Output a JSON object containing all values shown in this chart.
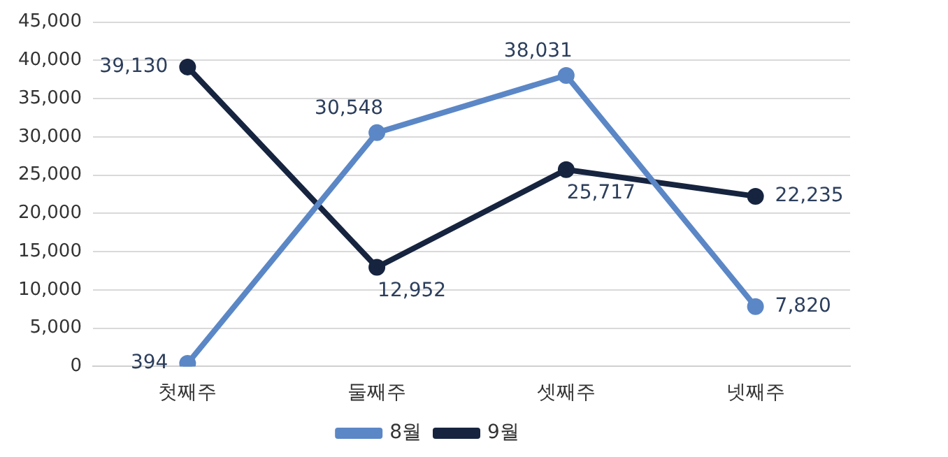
{
  "chart_data": {
    "type": "line",
    "categories": [
      "첫째주",
      "둘째주",
      "셋째주",
      "넷째주"
    ],
    "series": [
      {
        "name": "8월",
        "color": "#5b87c6",
        "values": [
          394,
          30548,
          38031,
          7820
        ],
        "value_labels": [
          "394",
          "30,548",
          "38,031",
          "7,820"
        ]
      },
      {
        "name": "9월",
        "color": "#16243f",
        "values": [
          39130,
          12952,
          25717,
          22235
        ],
        "value_labels": [
          "39,130",
          "12,952",
          "25,717",
          "22,235"
        ]
      }
    ],
    "ylim": [
      0,
      45000
    ],
    "yticks": [
      0,
      {
        "value": 5000,
        "label": "5,000"
      },
      {
        "value": 10000,
        "label": "10,000"
      },
      {
        "value": 15000,
        "label": "15,000"
      },
      {
        "value": 20000,
        "label": "20,000"
      },
      {
        "value": 25000,
        "label": "25,000"
      },
      {
        "value": 30000,
        "label": "30,000"
      },
      {
        "value": 35000,
        "label": "35,000"
      },
      {
        "value": 40000,
        "label": "40,000"
      },
      {
        "value": 45000,
        "label": "45,000"
      }
    ],
    "grid": "y",
    "legend": "bottom",
    "marker": "circle",
    "line_style": "solid"
  }
}
